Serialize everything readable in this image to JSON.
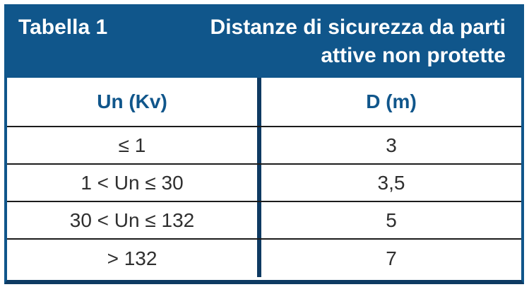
{
  "table": {
    "label": "Tabella 1",
    "title_line1": "Distanze di sicurezza da parti",
    "title_line2": "attive non protette",
    "columns": {
      "un": "Un (Kv)",
      "d": "D (m)"
    },
    "rows": [
      {
        "un": "≤ 1",
        "d": "3"
      },
      {
        "un": "1 < Un ≤ 30",
        "d": "3,5"
      },
      {
        "un": "30 < Un ≤ 132",
        "d": "5"
      },
      {
        "un": "> 132",
        "d": "7"
      }
    ]
  },
  "colors": {
    "band_blue": "#10568B",
    "divider_navy": "#0E3A62",
    "header_text_blue": "#10568B",
    "body_text": "#2F2F2F",
    "row_line": "#1C1C1C"
  },
  "chart_data": {
    "type": "table",
    "title": "Tabella 1 — Distanze di sicurezza da parti attive non protette",
    "columns": [
      "Un (Kv)",
      "D (m)"
    ],
    "rows": [
      [
        "≤ 1",
        "3"
      ],
      [
        "1 < Un ≤ 30",
        "3,5"
      ],
      [
        "30 < Un ≤ 132",
        "5"
      ],
      [
        "> 132",
        "7"
      ]
    ]
  }
}
